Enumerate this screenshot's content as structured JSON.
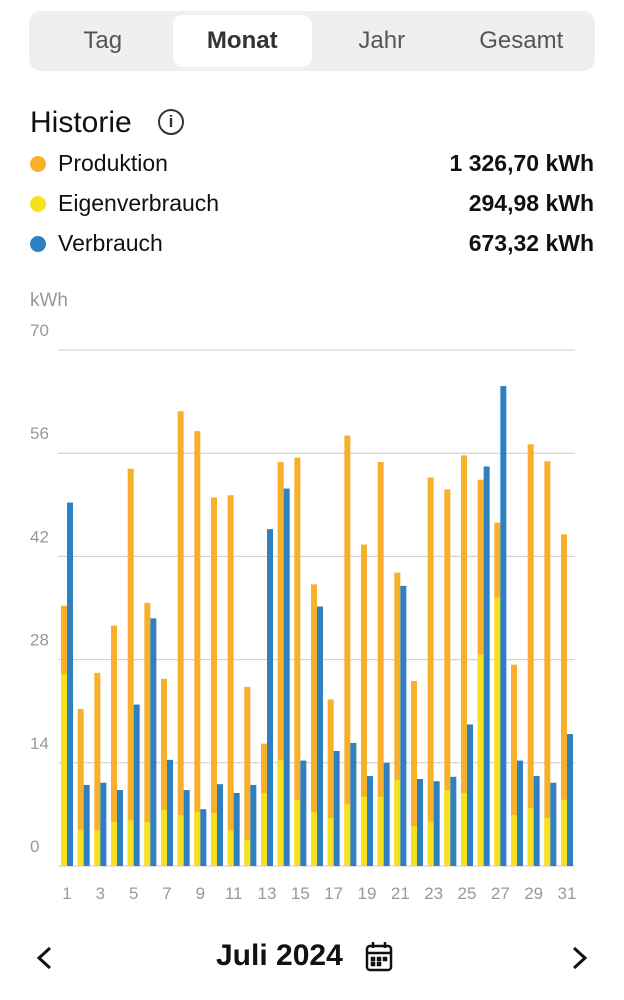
{
  "tabs": [
    "Tag",
    "Monat",
    "Jahr",
    "Gesamt"
  ],
  "title": "Historie",
  "chart_data": {
    "type": "bar",
    "unit": "kWh",
    "categories": [
      "1",
      null,
      "3",
      null,
      "5",
      null,
      "7",
      null,
      "9",
      null,
      "11",
      null,
      "13",
      null,
      "15",
      null,
      "17",
      null,
      "19",
      null,
      "21",
      null,
      "23",
      null,
      "25",
      null,
      "27",
      null,
      "29",
      null,
      "31"
    ],
    "series": [
      {
        "name": "Produktion",
        "total": "1 326,70 kWh",
        "color": "#f6b02a",
        "values": [
          35.3,
          21.3,
          26.2,
          32.6,
          53.9,
          35.7,
          25.4,
          61.7,
          59.0,
          50.0,
          50.3,
          24.3,
          16.6,
          54.8,
          55.4,
          38.2,
          22.6,
          58.4,
          43.6,
          54.8,
          39.8,
          25.1,
          52.7,
          51.1,
          55.7,
          52.4,
          46.6,
          27.3,
          57.2,
          54.9,
          45.0
        ]
      },
      {
        "name": "Eigenverbrauch",
        "total": "294,98 kWh",
        "color": "#f7e11c",
        "values": [
          26.0,
          4.9,
          4.9,
          6.0,
          6.2,
          6.0,
          7.6,
          6.9,
          7.3,
          7.2,
          4.9,
          3.5,
          9.9,
          14.4,
          9.0,
          7.3,
          6.5,
          8.4,
          9.4,
          9.4,
          11.7,
          5.4,
          6.0,
          10.3,
          9.9,
          28.7,
          36.4,
          6.9,
          7.9,
          6.5,
          9.0
        ]
      },
      {
        "name": "Verbrauch",
        "total": "673,32 kWh",
        "color": "#2f80c0",
        "values": [
          49.3,
          11.0,
          11.3,
          10.3,
          21.9,
          33.6,
          14.4,
          10.3,
          7.7,
          11.1,
          9.9,
          11.0,
          45.7,
          51.2,
          14.3,
          35.2,
          15.6,
          16.7,
          12.2,
          14.0,
          38.0,
          11.8,
          11.5,
          12.1,
          19.2,
          54.2,
          65.1,
          14.3,
          12.2,
          11.3,
          17.9
        ]
      }
    ],
    "ylim": [
      0,
      70
    ],
    "yticks": [
      0,
      14,
      28,
      42,
      56,
      70
    ],
    "grid": true
  },
  "footer": {
    "month": "Juli 2024"
  }
}
